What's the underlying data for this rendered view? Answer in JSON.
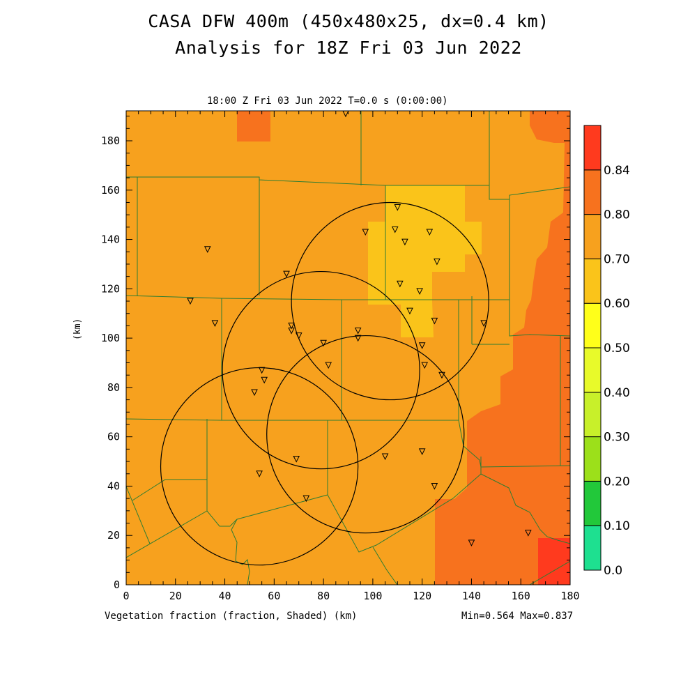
{
  "header": {
    "title_line1": "CASA DFW 400m (450x480x25, dx=0.4 km)",
    "title_line2": "Analysis for 18Z Fri 03 Jun 2022"
  },
  "plot": {
    "time_label": "18:00 Z Fri 03 Jun 2022   T=0.0 s (0:00:00)",
    "variable_label": "Vegetation fraction (fraction, Shaded)  (km)",
    "minmax_label": "Min=0.564 Max=0.837",
    "y_unit_label": "(km)",
    "x_ticks": [
      "0",
      "20",
      "40",
      "60",
      "80",
      "100",
      "120",
      "140",
      "160",
      "180"
    ],
    "y_ticks": [
      "0",
      "20",
      "40",
      "60",
      "80",
      "100",
      "120",
      "140",
      "160",
      "180"
    ]
  },
  "colorbar": {
    "levels": [
      "0.0",
      "0.10",
      "0.20",
      "0.30",
      "0.40",
      "0.50",
      "0.60",
      "0.70",
      "0.80",
      "0.84"
    ],
    "colors": [
      "#1ee090",
      "#22c83a",
      "#9ce01a",
      "#c8f02a",
      "#e8fa2a",
      "#ffff1a",
      "#fac41a",
      "#f7a11e",
      "#f7721e",
      "#ff3a1e"
    ]
  },
  "map_data": {
    "x_range_km": [
      0,
      180
    ],
    "y_range_km": [
      0,
      192
    ],
    "colors": {
      "base": "#f7a11e",
      "low": "#fac41a",
      "high": "#f7721e",
      "max": "#ff3a1e",
      "county_lines": "#2e7d32",
      "radar_rings": "#000000"
    },
    "radar_circles": [
      {
        "cx": 107,
        "cy": 115,
        "r": 40
      },
      {
        "cx": 79,
        "cy": 87,
        "r": 40
      },
      {
        "cx": 54,
        "cy": 48,
        "r": 40
      },
      {
        "cx": 97,
        "cy": 61,
        "r": 40
      }
    ],
    "stations": [
      [
        89,
        191
      ],
      [
        110,
        153
      ],
      [
        109,
        144
      ],
      [
        97,
        143
      ],
      [
        113,
        139
      ],
      [
        123,
        143
      ],
      [
        126,
        131
      ],
      [
        33,
        136
      ],
      [
        65,
        126
      ],
      [
        111,
        122
      ],
      [
        119,
        119
      ],
      [
        26,
        115
      ],
      [
        115,
        111
      ],
      [
        125,
        107
      ],
      [
        145,
        106
      ],
      [
        36,
        106
      ],
      [
        67,
        105
      ],
      [
        67,
        103
      ],
      [
        70,
        101
      ],
      [
        94,
        103
      ],
      [
        94,
        100
      ],
      [
        80,
        98
      ],
      [
        120,
        97
      ],
      [
        82,
        89
      ],
      [
        121,
        89
      ],
      [
        128,
        85
      ],
      [
        55,
        87
      ],
      [
        56,
        83
      ],
      [
        52,
        78
      ],
      [
        69,
        51
      ],
      [
        105,
        52
      ],
      [
        120,
        54
      ],
      [
        54,
        45
      ],
      [
        125,
        40
      ],
      [
        73,
        35
      ],
      [
        140,
        17
      ],
      [
        163,
        21
      ]
    ]
  }
}
